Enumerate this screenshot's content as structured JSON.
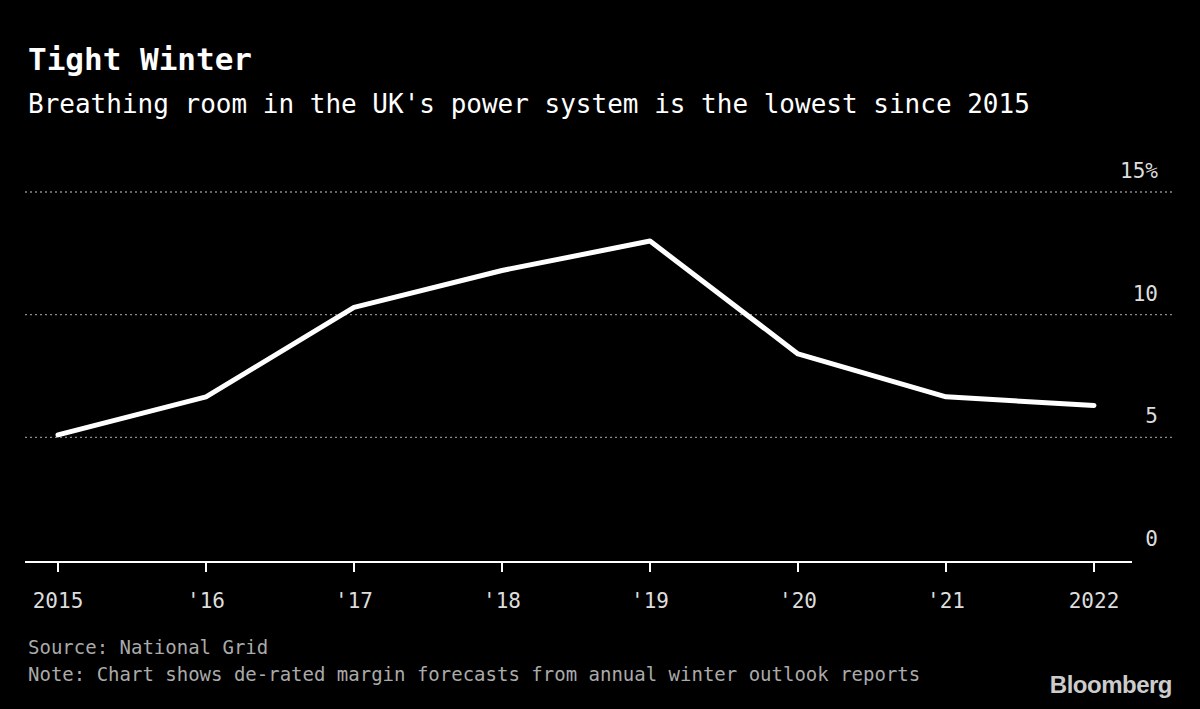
{
  "chart_data": {
    "type": "line",
    "title": "Tight Winter",
    "subtitle": "Breathing room in the UK's power system is the lowest since 2015",
    "source": "Source: National Grid",
    "note": "Note: Chart shows de-rated margin forecasts from annual winter outlook reports",
    "credit": "Bloomberg",
    "categories": [
      "2015",
      "'16",
      "'17",
      "'18",
      "'19",
      "'20",
      "'21",
      "2022"
    ],
    "values": [
      5.1,
      6.65,
      10.3,
      11.8,
      13.0,
      8.4,
      6.65,
      6.3
    ],
    "color": "#ffffff",
    "ylim": [
      0,
      15
    ],
    "yticks": [
      0,
      5,
      10,
      {
        "value": 15,
        "label": "15%"
      }
    ],
    "grid": true
  }
}
